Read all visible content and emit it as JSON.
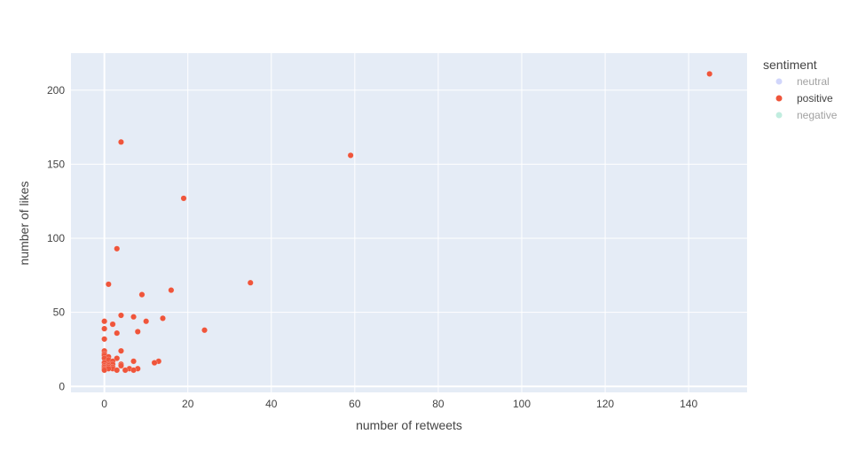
{
  "chart_data": {
    "type": "scatter",
    "xlabel": "number of retweets",
    "ylabel": "number of likes",
    "xlim": [
      -8,
      154
    ],
    "ylim": [
      -4,
      225
    ],
    "xticks": [
      0,
      20,
      40,
      60,
      80,
      100,
      120,
      140
    ],
    "yticks": [
      0,
      50,
      100,
      150,
      200
    ],
    "grid": true,
    "legend": {
      "title": "sentiment",
      "placement": "right",
      "entries": [
        {
          "name": "neutral",
          "color": "#a4aef8",
          "visible": false
        },
        {
          "name": "positive",
          "color": "#ef553b",
          "visible": true
        },
        {
          "name": "negative",
          "color": "#84dcbf",
          "visible": false
        }
      ]
    },
    "series": [
      {
        "name": "positive",
        "color": "#ef553b",
        "points": [
          [
            145,
            211
          ],
          [
            59,
            156
          ],
          [
            4,
            165
          ],
          [
            19,
            127
          ],
          [
            35,
            70
          ],
          [
            3,
            93
          ],
          [
            1,
            69
          ],
          [
            16,
            65
          ],
          [
            9,
            62
          ],
          [
            4,
            48
          ],
          [
            7,
            47
          ],
          [
            14,
            46
          ],
          [
            10,
            44
          ],
          [
            0,
            44
          ],
          [
            2,
            42
          ],
          [
            0,
            39
          ],
          [
            24,
            38
          ],
          [
            8,
            37
          ],
          [
            3,
            36
          ],
          [
            0,
            32
          ],
          [
            4,
            24
          ],
          [
            0,
            24
          ],
          [
            0,
            22
          ],
          [
            0,
            21
          ],
          [
            1,
            20
          ],
          [
            3,
            19
          ],
          [
            0,
            19
          ],
          [
            1,
            18
          ],
          [
            2,
            17
          ],
          [
            7,
            17
          ],
          [
            13,
            17
          ],
          [
            12,
            16
          ],
          [
            0,
            16
          ],
          [
            1,
            15
          ],
          [
            4,
            15
          ],
          [
            2,
            15
          ],
          [
            0,
            14
          ],
          [
            1,
            14
          ],
          [
            4,
            14
          ],
          [
            0,
            13
          ],
          [
            1,
            13
          ],
          [
            2,
            13
          ],
          [
            2,
            12
          ],
          [
            6,
            12
          ],
          [
            8,
            12
          ],
          [
            0,
            12
          ],
          [
            1,
            12
          ],
          [
            3,
            11
          ],
          [
            5,
            11
          ],
          [
            7,
            11
          ],
          [
            0,
            11
          ]
        ]
      }
    ]
  }
}
